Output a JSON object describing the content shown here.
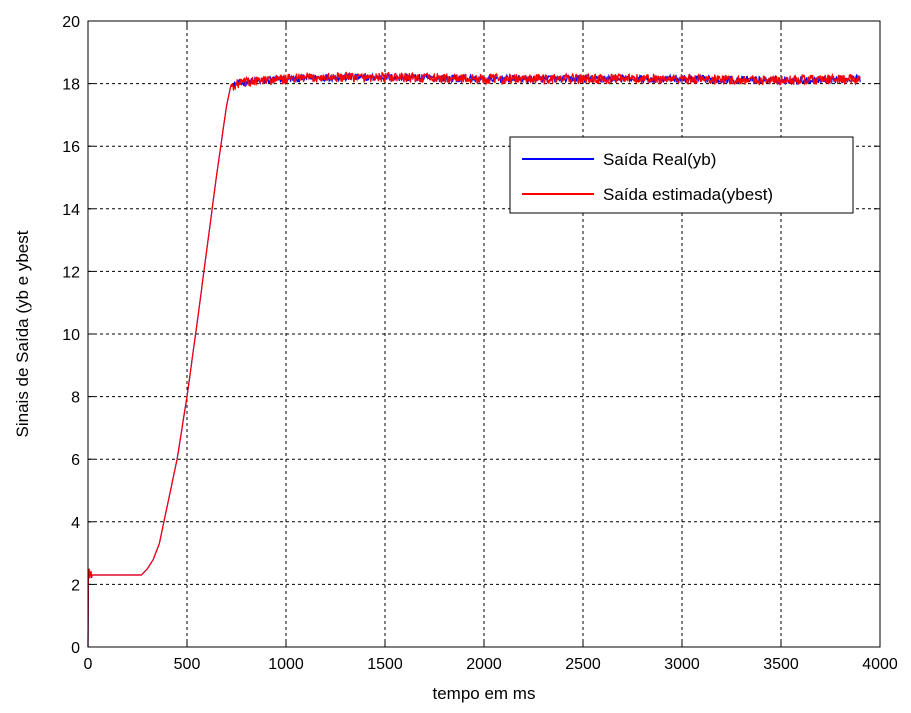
{
  "chart_data": {
    "type": "line",
    "xlabel": "tempo em ms",
    "ylabel": "Sinais de Saída (yb e ybest",
    "xlim": [
      0,
      4000
    ],
    "ylim": [
      0,
      20
    ],
    "xticks": [
      0,
      500,
      1000,
      1500,
      2000,
      2500,
      3000,
      3500,
      4000
    ],
    "yticks": [
      0,
      2,
      4,
      6,
      8,
      10,
      12,
      14,
      16,
      18,
      20
    ],
    "grid": true,
    "legend_position": "upper-right",
    "series": [
      {
        "name": "Saída Real(yb)",
        "color": "#0000ff",
        "x": [
          0,
          2,
          5,
          10,
          50,
          100,
          150,
          200,
          250,
          270,
          300,
          330,
          360,
          400,
          450,
          500,
          550,
          600,
          650,
          700,
          720,
          760,
          800,
          900,
          1000,
          1200,
          1500,
          2000,
          2500,
          3000,
          3500,
          3900
        ],
        "y": [
          0,
          2.3,
          2.5,
          2.3,
          2.3,
          2.3,
          2.3,
          2.3,
          2.3,
          2.3,
          2.5,
          2.8,
          3.3,
          4.5,
          6.0,
          8.0,
          10.3,
          12.7,
          15.1,
          17.3,
          17.9,
          18.0,
          18.05,
          18.1,
          18.15,
          18.2,
          18.2,
          18.15,
          18.15,
          18.15,
          18.1,
          18.15
        ]
      },
      {
        "name": "Saída estimada(ybest)",
        "color": "#ff0000",
        "x": [
          0,
          2,
          5,
          10,
          50,
          100,
          150,
          200,
          250,
          270,
          300,
          330,
          360,
          400,
          450,
          500,
          550,
          600,
          650,
          700,
          720,
          760,
          800,
          900,
          1000,
          1200,
          1500,
          2000,
          2500,
          3000,
          3500,
          3900
        ],
        "y": [
          0,
          2.3,
          2.5,
          2.3,
          2.3,
          2.3,
          2.3,
          2.3,
          2.3,
          2.3,
          2.5,
          2.8,
          3.3,
          4.5,
          6.0,
          8.0,
          10.3,
          12.7,
          15.1,
          17.3,
          17.9,
          18.0,
          18.05,
          18.1,
          18.15,
          18.2,
          18.2,
          18.15,
          18.15,
          18.15,
          18.1,
          18.15
        ]
      }
    ]
  }
}
